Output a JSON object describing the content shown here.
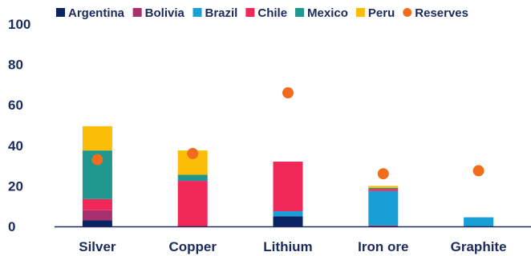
{
  "chart_data": {
    "type": "bar",
    "stacked": true,
    "categories": [
      "Silver",
      "Copper",
      "Lithium",
      "Iron ore",
      "Graphite"
    ],
    "ylim": [
      0,
      100
    ],
    "yticks": [
      "0",
      "20",
      "40",
      "60",
      "80",
      "100"
    ],
    "yticks_values": [
      0,
      20,
      40,
      60,
      80,
      100
    ],
    "grid": false,
    "legend_position": "top",
    "series": [
      {
        "name": "Argentina",
        "color": "#0a2463",
        "values": [
          3,
          0,
          5,
          0,
          0
        ]
      },
      {
        "name": "Bolivia",
        "color": "#a8306e",
        "values": [
          5,
          0,
          0,
          0.5,
          0
        ]
      },
      {
        "name": "Brazil",
        "color": "#1a9ed6",
        "values": [
          0,
          0,
          2.5,
          17,
          4.5
        ]
      },
      {
        "name": "Chile",
        "color": "#f0285a",
        "values": [
          5.5,
          22.5,
          24.5,
          1,
          0
        ]
      },
      {
        "name": "Mexico",
        "color": "#1f968e",
        "values": [
          24,
          3,
          0,
          0.5,
          0
        ]
      },
      {
        "name": "Peru",
        "color": "#fbbd08",
        "values": [
          12,
          12,
          0,
          1,
          0
        ]
      }
    ],
    "reserves": {
      "name": "Reserves",
      "color": "#f26c1d",
      "values": [
        33,
        36,
        66,
        26,
        27.5
      ]
    }
  }
}
